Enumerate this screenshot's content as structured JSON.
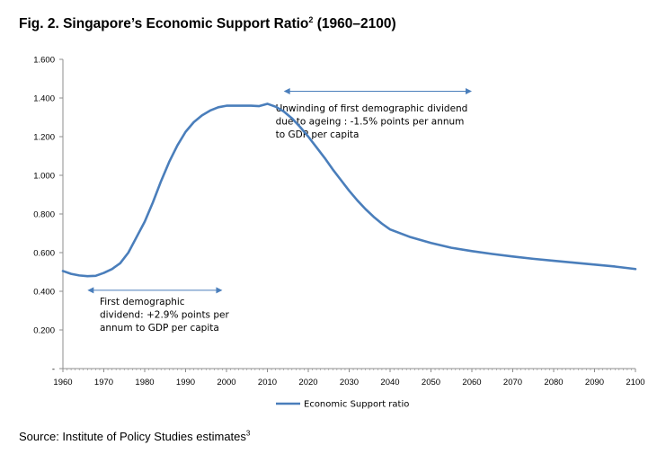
{
  "header": {
    "title": "Fig. 2. Singapore’s Economic Support Ratio",
    "title_superscript": "2",
    "title_suffix": " (1960–2100)"
  },
  "footer": {
    "source": "Source: Institute of Policy Studies estimates",
    "source_superscript": "3"
  },
  "colors": {
    "series": "#4a7ebb",
    "axis": "#8c8c8c"
  },
  "chart_data": {
    "type": "line",
    "title": "",
    "xlabel": "",
    "ylabel": "",
    "xlim": [
      1960,
      2100
    ],
    "ylim": [
      0,
      1.6
    ],
    "grid": false,
    "legend_position": "bottom-center",
    "x_tick_labels": [
      "1960",
      "1970",
      "1980",
      "1990",
      "2000",
      "2010",
      "2020",
      "2030",
      "2040",
      "2050",
      "2060",
      "2070",
      "2080",
      "2090",
      "2100"
    ],
    "y_tick_labels": [
      "-",
      "0.200",
      "0.400",
      "0.600",
      "0.800",
      "1.000",
      "1.200",
      "1.400",
      "1.600"
    ],
    "series": [
      {
        "name": "Economic Support ratio",
        "x": [
          1960,
          1962,
          1964,
          1966,
          1968,
          1970,
          1972,
          1974,
          1976,
          1978,
          1980,
          1982,
          1984,
          1986,
          1988,
          1990,
          1992,
          1994,
          1996,
          1998,
          2000,
          2002,
          2004,
          2006,
          2008,
          2010,
          2012,
          2014,
          2016,
          2018,
          2020,
          2022,
          2024,
          2026,
          2028,
          2030,
          2032,
          2034,
          2036,
          2038,
          2040,
          2045,
          2050,
          2055,
          2060,
          2065,
          2070,
          2075,
          2080,
          2085,
          2090,
          2095,
          2100
        ],
        "values": [
          0.505,
          0.49,
          0.482,
          0.478,
          0.48,
          0.495,
          0.515,
          0.545,
          0.6,
          0.68,
          0.76,
          0.86,
          0.97,
          1.07,
          1.155,
          1.225,
          1.275,
          1.31,
          1.335,
          1.352,
          1.36,
          1.36,
          1.36,
          1.36,
          1.358,
          1.37,
          1.355,
          1.33,
          1.295,
          1.25,
          1.2,
          1.145,
          1.09,
          1.03,
          0.975,
          0.92,
          0.87,
          0.825,
          0.785,
          0.75,
          0.72,
          0.68,
          0.65,
          0.625,
          0.608,
          0.593,
          0.58,
          0.568,
          0.558,
          0.548,
          0.538,
          0.528,
          0.515
        ]
      }
    ],
    "annotations": [
      {
        "lines": [
          "Unwinding of first demographic dividend",
          "due to ageing : -1.5% points per annum",
          "to GDP per capita"
        ],
        "arrow_x": [
          2014,
          2060
        ],
        "arrow_y": 1.435,
        "text_x": 2012,
        "text_y": 1.33
      },
      {
        "lines": [
          "First demographic",
          "dividend: +2.9% points per",
          "annum to GDP per capita"
        ],
        "arrow_x": [
          1966,
          1999
        ],
        "arrow_y": 0.405,
        "text_x": 1969,
        "text_y": 0.33
      }
    ]
  }
}
